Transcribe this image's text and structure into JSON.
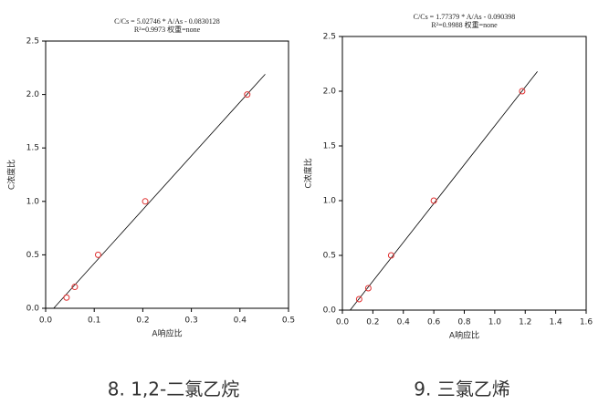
{
  "chart_data": [
    {
      "type": "scatter",
      "title": "C/Cs = 5.02746 * A/As - 0.0830128",
      "subtitle": "R²=0.9973 权重=none",
      "x_label": "A响应比",
      "y_label": "C浓度比",
      "caption": "8.   1,2-二氯乙烷",
      "x": [
        0.043,
        0.06,
        0.108,
        0.205,
        0.415
      ],
      "values": [
        0.1,
        0.2,
        0.5,
        1.0,
        2.0
      ],
      "color": "#e03030",
      "fit": {
        "x": [
          0.0165,
          0.452
        ],
        "y": [
          0,
          2.19
        ],
        "color": "#000000"
      },
      "xlim": [
        0,
        0.5
      ],
      "ylim": [
        0,
        2.5
      ],
      "xticks": [
        {
          "value": 0,
          "label": "0.0"
        },
        0.1,
        0.2,
        0.3,
        0.4,
        0.5
      ],
      "yticks": [
        {
          "value": 0,
          "label": "0.0"
        },
        0.5,
        {
          "value": 1,
          "label": "1.0"
        },
        1.5,
        {
          "value": 2,
          "label": "2.0"
        },
        2.5
      ]
    },
    {
      "type": "scatter",
      "title": "C/Cs = 1.77379 * A/As - 0.090398",
      "subtitle": "R²=0.9988 权重=none",
      "x_label": "A响应比",
      "y_label": "C浓度比",
      "caption": "9. 三氯乙烯",
      "x": [
        0.11,
        0.17,
        0.32,
        0.6,
        1.18
      ],
      "values": [
        0.1,
        0.2,
        0.5,
        1.0,
        2.0
      ],
      "color": "#e03030",
      "fit": {
        "x": [
          0.051,
          1.28
        ],
        "y": [
          0,
          2.18
        ],
        "color": "#000000"
      },
      "xlim": [
        0,
        1.6
      ],
      "ylim": [
        0,
        2.5
      ],
      "xticks": [
        {
          "value": 0,
          "label": "0.0"
        },
        0.2,
        0.4,
        0.6,
        0.8,
        {
          "value": 1,
          "label": "1.0"
        },
        1.2,
        1.4,
        1.6
      ],
      "yticks": [
        {
          "value": 0,
          "label": "0.0"
        },
        0.5,
        {
          "value": 1,
          "label": "1.0"
        },
        1.5,
        {
          "value": 2,
          "label": "2.0"
        },
        2.5
      ]
    }
  ]
}
